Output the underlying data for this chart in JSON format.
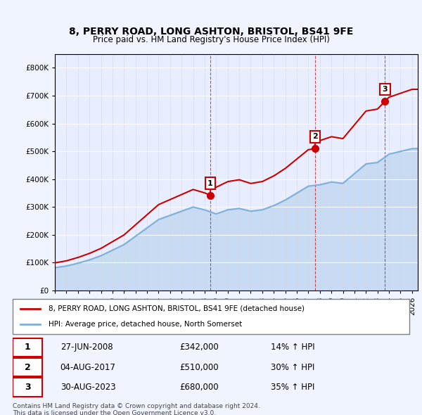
{
  "title": "8, PERRY ROAD, LONG ASHTON, BRISTOL, BS41 9FE",
  "subtitle": "Price paid vs. HM Land Registry's House Price Index (HPI)",
  "legend_label_red": "8, PERRY ROAD, LONG ASHTON, BRISTOL, BS41 9FE (detached house)",
  "legend_label_blue": "HPI: Average price, detached house, North Somerset",
  "footnote1": "Contains HM Land Registry data © Crown copyright and database right 2024.",
  "footnote2": "This data is licensed under the Open Government Licence v3.0.",
  "sales": [
    {
      "num": 1,
      "date": "27-JUN-2008",
      "price": 342000,
      "hpi_pct": "14% ↑ HPI",
      "year": 2008.49
    },
    {
      "num": 2,
      "date": "04-AUG-2017",
      "price": 510000,
      "hpi_pct": "30% ↑ HPI",
      "year": 2017.59
    },
    {
      "num": 3,
      "date": "30-AUG-2023",
      "price": 680000,
      "hpi_pct": "35% ↑ HPI",
      "year": 2023.66
    }
  ],
  "ylim": [
    0,
    850000
  ],
  "xlim_start": 1995,
  "xlim_end": 2026.5,
  "background_color": "#f0f4ff",
  "plot_bg": "#e8eeff",
  "red_color": "#cc0000",
  "blue_color": "#7fb0d8",
  "marker_color_red": "#cc0000"
}
